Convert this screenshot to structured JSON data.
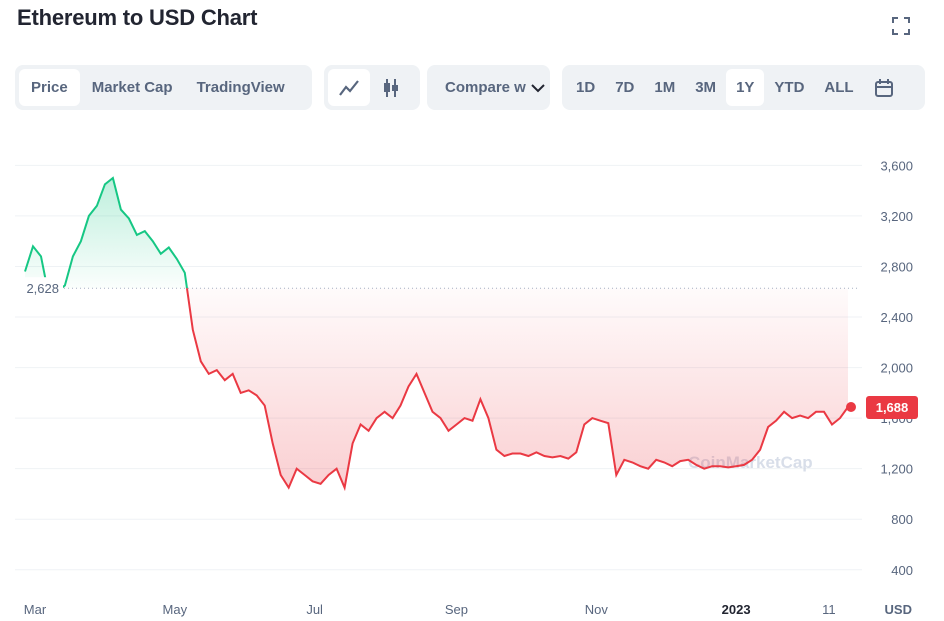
{
  "header": {
    "title": "Ethereum to USD Chart"
  },
  "toolbar": {
    "tabs": [
      "Price",
      "Market Cap",
      "TradingView"
    ],
    "compare": "Compare w",
    "ranges": [
      "1D",
      "7D",
      "1M",
      "3M",
      "1Y",
      "YTD",
      "ALL"
    ]
  },
  "chart_data": {
    "type": "line",
    "color_up": "#16c784",
    "color_down": "#ea3943",
    "values": [
      2760,
      2960,
      2880,
      2560,
      2600,
      2650,
      2880,
      3000,
      3200,
      3280,
      3450,
      3500,
      3250,
      3180,
      3050,
      3080,
      3000,
      2900,
      2950,
      2860,
      2750,
      2300,
      2050,
      1950,
      1980,
      1900,
      1950,
      1800,
      1820,
      1780,
      1700,
      1400,
      1150,
      1050,
      1200,
      1150,
      1100,
      1080,
      1150,
      1200,
      1050,
      1400,
      1550,
      1500,
      1600,
      1650,
      1600,
      1700,
      1850,
      1950,
      1800,
      1650,
      1600,
      1500,
      1550,
      1600,
      1580,
      1750,
      1600,
      1350,
      1300,
      1320,
      1320,
      1300,
      1330,
      1300,
      1290,
      1300,
      1280,
      1330,
      1550,
      1600,
      1580,
      1560,
      1150,
      1270,
      1250,
      1220,
      1200,
      1270,
      1250,
      1220,
      1260,
      1270,
      1230,
      1200,
      1220,
      1220,
      1210,
      1220,
      1230,
      1270,
      1350,
      1530,
      1580,
      1650,
      1600,
      1620,
      1600,
      1650,
      1650,
      1550,
      1600,
      1688
    ],
    "reference": {
      "value": 2628,
      "label": "2,628"
    },
    "last": {
      "value": 1688,
      "label": "1,688"
    },
    "xlim": [
      -1.25,
      104.25
    ],
    "xticks": [
      {
        "value": 1.25,
        "label": "Mar"
      },
      {
        "value": 18.75,
        "label": "May"
      },
      {
        "value": 36.25,
        "label": "Jul"
      },
      {
        "value": 54,
        "label": "Sep"
      },
      {
        "value": 71.5,
        "label": "Nov"
      },
      {
        "value": 89,
        "label": "2023"
      },
      {
        "value": 100.6,
        "label": "11"
      }
    ],
    "ylim": [
      240,
      3880
    ],
    "yticks": [
      400,
      800,
      {
        "value": 1200,
        "label": "1,200"
      },
      {
        "value": 1600,
        "label": "1,600"
      },
      {
        "value": 2000,
        "label": "2,000"
      },
      {
        "value": 2400,
        "label": "2,400"
      },
      {
        "value": 2800,
        "label": "2,800"
      },
      {
        "value": 3200,
        "label": "3,200"
      },
      {
        "value": 3600,
        "label": "3,600"
      }
    ],
    "y_unit": "USD",
    "watermark": "CoinMarketCap",
    "grid": true
  }
}
